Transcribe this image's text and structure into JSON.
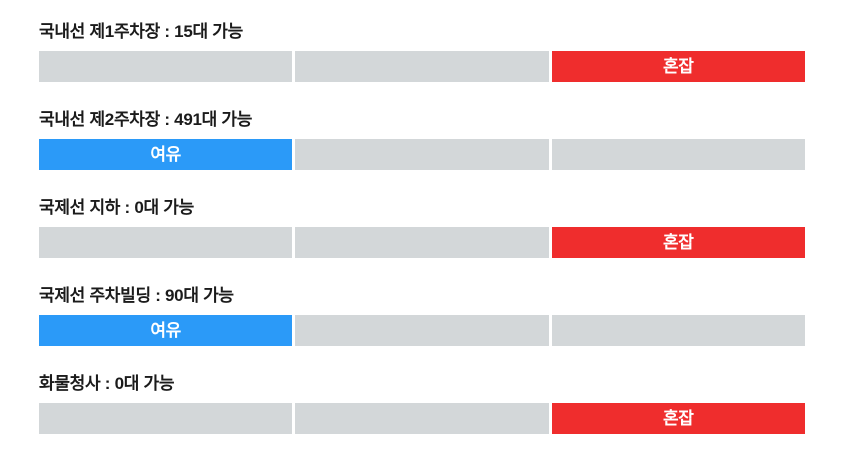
{
  "colors": {
    "available": "#2B9AF8",
    "congested": "#EF2D2D",
    "empty": "#D3D7D9",
    "title_text": "#1B1B1B",
    "badge_text": "#FFFFFF"
  },
  "status_labels": {
    "available": "여유",
    "congested": "혼잡"
  },
  "lots": [
    {
      "title": "국내선 제1주차장 : 15대 가능",
      "available_count": 15,
      "status": "congested",
      "label": "혼잡",
      "active_segment": 2
    },
    {
      "title": "국내선 제2주차장 : 491대 가능",
      "available_count": 491,
      "status": "available",
      "label": "여유",
      "active_segment": 0
    },
    {
      "title": "국제선 지하 : 0대 가능",
      "available_count": 0,
      "status": "congested",
      "label": "혼잡",
      "active_segment": 2
    },
    {
      "title": "국제선 주차빌딩 : 90대 가능",
      "available_count": 90,
      "status": "available",
      "label": "여유",
      "active_segment": 0
    },
    {
      "title": "화물청사 : 0대 가능",
      "available_count": 0,
      "status": "congested",
      "label": "혼잡",
      "active_segment": 2
    }
  ]
}
